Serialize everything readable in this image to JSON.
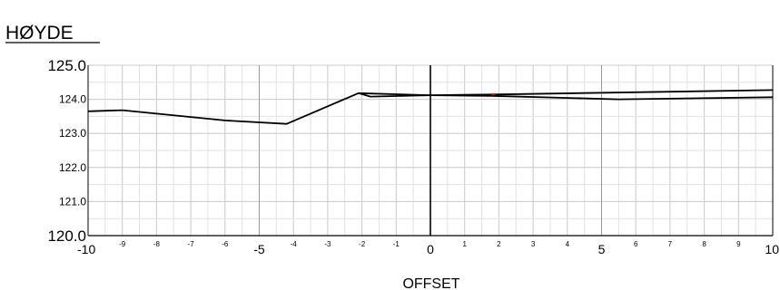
{
  "chart_data": {
    "type": "line",
    "title": "HØYDE",
    "xlabel": "OFFSET",
    "ylabel": "",
    "xlim": [
      -10,
      10
    ],
    "ylim": [
      120,
      125
    ],
    "grid": true,
    "x_ticks_small": [
      {
        "v": -9,
        "label": "-9"
      },
      {
        "v": -8,
        "label": "-8"
      },
      {
        "v": -7,
        "label": "-7"
      },
      {
        "v": -6,
        "label": "-6"
      },
      {
        "v": -4,
        "label": "-4"
      },
      {
        "v": -3,
        "label": "-3"
      },
      {
        "v": -2,
        "label": "-2"
      },
      {
        "v": -1,
        "label": "-1"
      },
      {
        "v": 1,
        "label": "1"
      },
      {
        "v": 2,
        "label": "2"
      },
      {
        "v": 3,
        "label": "3"
      },
      {
        "v": 4,
        "label": "4"
      },
      {
        "v": 6,
        "label": "6"
      },
      {
        "v": 7,
        "label": "7"
      },
      {
        "v": 8,
        "label": "8"
      },
      {
        "v": 9,
        "label": "9"
      }
    ],
    "x_ticks_major": [
      {
        "v": -10,
        "label": "-10"
      },
      {
        "v": -5,
        "label": "-5"
      },
      {
        "v": 0,
        "label": "0"
      },
      {
        "v": 5,
        "label": "5"
      },
      {
        "v": 10,
        "label": "10"
      }
    ],
    "y_ticks": [
      {
        "v": 125,
        "label": "125.0"
      },
      {
        "v": 124,
        "label": "124.0"
      },
      {
        "v": 123,
        "label": "123.0"
      },
      {
        "v": 122,
        "label": "122.0"
      },
      {
        "v": 121,
        "label": "121.0"
      },
      {
        "v": 120,
        "label": "120.0"
      }
    ],
    "series": [
      {
        "color": "#000000",
        "points": [
          [
            -10,
            123.65
          ],
          [
            -9,
            123.68
          ],
          [
            -6,
            123.38
          ],
          [
            -4.2,
            123.28
          ],
          [
            -2.1,
            124.18
          ],
          [
            0,
            124.12
          ],
          [
            1.8,
            124.1
          ],
          [
            5.5,
            124.0
          ],
          [
            10,
            124.06
          ]
        ]
      },
      {
        "color": "#000000",
        "points": [
          [
            -2.1,
            124.18
          ],
          [
            -1.75,
            124.08
          ],
          [
            0,
            124.12
          ],
          [
            1.8,
            124.14
          ],
          [
            10,
            124.27
          ]
        ]
      },
      {
        "color": "#ff0000",
        "points": [
          [
            1.78,
            124.15
          ],
          [
            1.9,
            124.15
          ]
        ]
      }
    ]
  }
}
